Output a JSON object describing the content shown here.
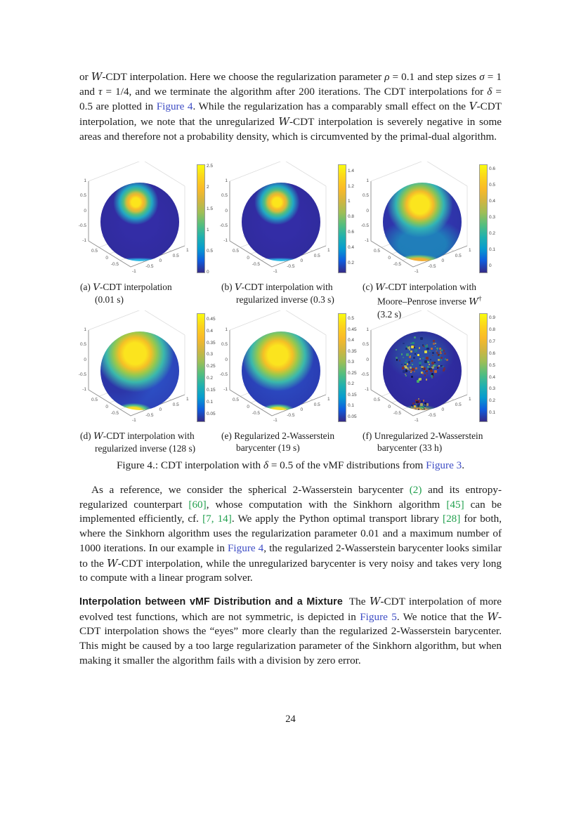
{
  "page": {
    "number": "24"
  },
  "colors": {
    "link": "#3d4cc4",
    "cite": "#22a04e",
    "colormap": "parula",
    "colormap_stops": [
      "#352a87",
      "#0f5cdd",
      "#079ccf",
      "#21b1ae",
      "#55be7e",
      "#9dbe57",
      "#d1b541",
      "#f9ba29",
      "#fcd41c",
      "#f9fb0e"
    ]
  },
  "paragraphs": {
    "p1": {
      "segments": [
        {
          "text": "or "
        },
        {
          "text": "W",
          "style": "cal"
        },
        {
          "text": "-CDT interpolation. Here we choose the regularization parameter "
        },
        {
          "text": "ρ",
          "style": "math"
        },
        {
          "text": " = 0.1 and step sizes "
        },
        {
          "text": "σ",
          "style": "math"
        },
        {
          "text": " = 1 and "
        },
        {
          "text": "τ",
          "style": "math"
        },
        {
          "text": " = 1/4, and we terminate the algorithm after 200 iterations. The CDT interpolations for "
        },
        {
          "text": "δ",
          "style": "math"
        },
        {
          "text": " = 0.5 are plotted in "
        },
        {
          "text": "Figure 4",
          "style": "link"
        },
        {
          "text": ". While the regularization has a comparably small effect on the "
        },
        {
          "text": "V",
          "style": "cal"
        },
        {
          "text": "-CDT interpolation, we note that the unregularized "
        },
        {
          "text": "W",
          "style": "cal"
        },
        {
          "text": "-CDT interpolation is severely negative in some areas and therefore not a probability density, which is circumvented by the primal-dual algorithm."
        }
      ]
    },
    "p2": {
      "segments": [
        {
          "text": "As a reference, we consider the spherical 2-Wasserstein barycenter "
        },
        {
          "text": "(2)",
          "style": "cite"
        },
        {
          "text": " and its entropy-regularized counterpart "
        },
        {
          "text": "[60]",
          "style": "cite"
        },
        {
          "text": ", whose computation with the Sinkhorn algorithm "
        },
        {
          "text": "[45]",
          "style": "cite"
        },
        {
          "text": " can be implemented efficiently, cf. "
        },
        {
          "text": "[7, 14]",
          "style": "cite"
        },
        {
          "text": ". We apply the Python optimal transport library "
        },
        {
          "text": "[28]",
          "style": "cite"
        },
        {
          "text": " for both, where the Sinkhorn algorithm uses the regularization parameter 0.01 and a maximum number of 1000 iterations. In our example in "
        },
        {
          "text": "Figure 4",
          "style": "link"
        },
        {
          "text": ", the regularized 2-Wasserstein barycenter looks similar to the "
        },
        {
          "text": "W",
          "style": "cal"
        },
        {
          "text": "-CDT interpolation, while the unregularized barycenter is very noisy and takes very long to compute with a linear program solver."
        }
      ]
    },
    "p3": {
      "segments": [
        {
          "text": "Interpolation between vMF Distribution and a Mixture",
          "style": "boldsans"
        },
        {
          "text": "The "
        },
        {
          "text": "W",
          "style": "cal"
        },
        {
          "text": "-CDT interpolation of more evolved test functions, which are not symmetric, is depicted in "
        },
        {
          "text": "Figure 5",
          "style": "link"
        },
        {
          "text": ". We notice that the "
        },
        {
          "text": "W",
          "style": "cal"
        },
        {
          "text": "-CDT interpolation shows the “eyes” more clearly than the regularized 2-Wasserstein barycenter. This might be caused by a too large regularization parameter of the Sinkhorn algorithm, but when making it smaller the algorithm fails with a division by zero error."
        }
      ]
    }
  },
  "figure": {
    "axes": {
      "z": [
        "1",
        "0.5",
        "0",
        "-0.5",
        "-1"
      ],
      "left": [
        "0.5",
        "0",
        "-0.5"
      ],
      "right": [
        "1",
        "0.5",
        "0",
        "-0.5",
        "-1"
      ]
    },
    "panels": [
      {
        "id": "a",
        "appearance": "dark-blue-sphere-small-yellow-hotspot-top",
        "colorbar": {
          "min": 0,
          "max": 2.52,
          "ticks": [
            "0",
            "0.5",
            "1",
            "1.5",
            "2",
            "2.5"
          ]
        },
        "caption_lines": [
          [
            {
              "text": "(a) "
            },
            {
              "text": "V",
              "style": "cal"
            },
            {
              "text": "-CDT interpolation"
            }
          ],
          [
            {
              "text": "(0.01 s)"
            }
          ]
        ]
      },
      {
        "id": "b",
        "appearance": "dark-blue-sphere-small-yellow-hotspot-top",
        "colorbar": {
          "min": 0.08,
          "max": 1.47,
          "ticks": [
            "0.2",
            "0.4",
            "0.6",
            "0.8",
            "1",
            "1.2",
            "1.4"
          ]
        },
        "caption_lines": [
          [
            {
              "text": "(b) "
            },
            {
              "text": "V",
              "style": "cal"
            },
            {
              "text": "-CDT interpolation with"
            }
          ],
          [
            {
              "text": "regularized inverse (0.3 s)"
            }
          ]
        ]
      },
      {
        "id": "c",
        "appearance": "blue-sphere-large-yellow-hotspot-warm-bottom-spot",
        "colorbar": {
          "min": -0.04,
          "max": 0.62,
          "ticks": [
            "0",
            "0.1",
            "0.2",
            "0.3",
            "0.4",
            "0.5",
            "0.6"
          ]
        },
        "caption_lines": [
          [
            {
              "text": "(c) "
            },
            {
              "text": "W",
              "style": "cal"
            },
            {
              "text": "-CDT interpolation with"
            }
          ],
          [
            {
              "text": "Moore–Penrose inverse "
            },
            {
              "text": "W",
              "style": "cal"
            },
            {
              "text": "†",
              "style": "sup"
            }
          ],
          [
            {
              "text": "(3.2 s)"
            }
          ]
        ]
      },
      {
        "id": "d",
        "appearance": "light-blue-sphere-large-yellow-hotspot-bottom-spot",
        "colorbar": {
          "min": 0.02,
          "max": 0.47,
          "ticks": [
            "0.05",
            "0.1",
            "0.15",
            "0.2",
            "0.25",
            "0.3",
            "0.35",
            "0.4",
            "0.45"
          ]
        },
        "caption_lines": [
          [
            {
              "text": "(d) "
            },
            {
              "text": "W",
              "style": "cal"
            },
            {
              "text": "-CDT interpolation with"
            }
          ],
          [
            {
              "text": "regularized inverse (128 s)"
            }
          ]
        ]
      },
      {
        "id": "e",
        "appearance": "blue-sphere-large-yellow-hotspot-bottom-spot",
        "colorbar": {
          "min": 0.03,
          "max": 0.52,
          "ticks": [
            "0.05",
            "0.1",
            "0.15",
            "0.2",
            "0.25",
            "0.3",
            "0.35",
            "0.4",
            "0.45",
            "0.5"
          ]
        },
        "caption_lines": [
          [
            {
              "text": "(e) Regularized 2-Wasserstein"
            }
          ],
          [
            {
              "text": "barycenter (19 s)"
            }
          ]
        ]
      },
      {
        "id": "f",
        "appearance": "dark-blue-sphere-noisy-multicolor-speckles",
        "colorbar": {
          "min": 0.03,
          "max": 0.93,
          "ticks": [
            "0.1",
            "0.2",
            "0.3",
            "0.4",
            "0.5",
            "0.6",
            "0.7",
            "0.8",
            "0.9"
          ]
        },
        "caption_lines": [
          [
            {
              "text": "(f) Unregularized 2-Wasserstein"
            }
          ],
          [
            {
              "text": "barycenter (33 h)"
            }
          ]
        ]
      }
    ],
    "caption": {
      "segments": [
        {
          "text": "Figure 4.: CDT interpolation with "
        },
        {
          "text": "δ",
          "style": "math"
        },
        {
          "text": " = 0.5 of the vMF distributions from "
        },
        {
          "text": "Figure 3",
          "style": "link"
        },
        {
          "text": "."
        }
      ]
    }
  }
}
